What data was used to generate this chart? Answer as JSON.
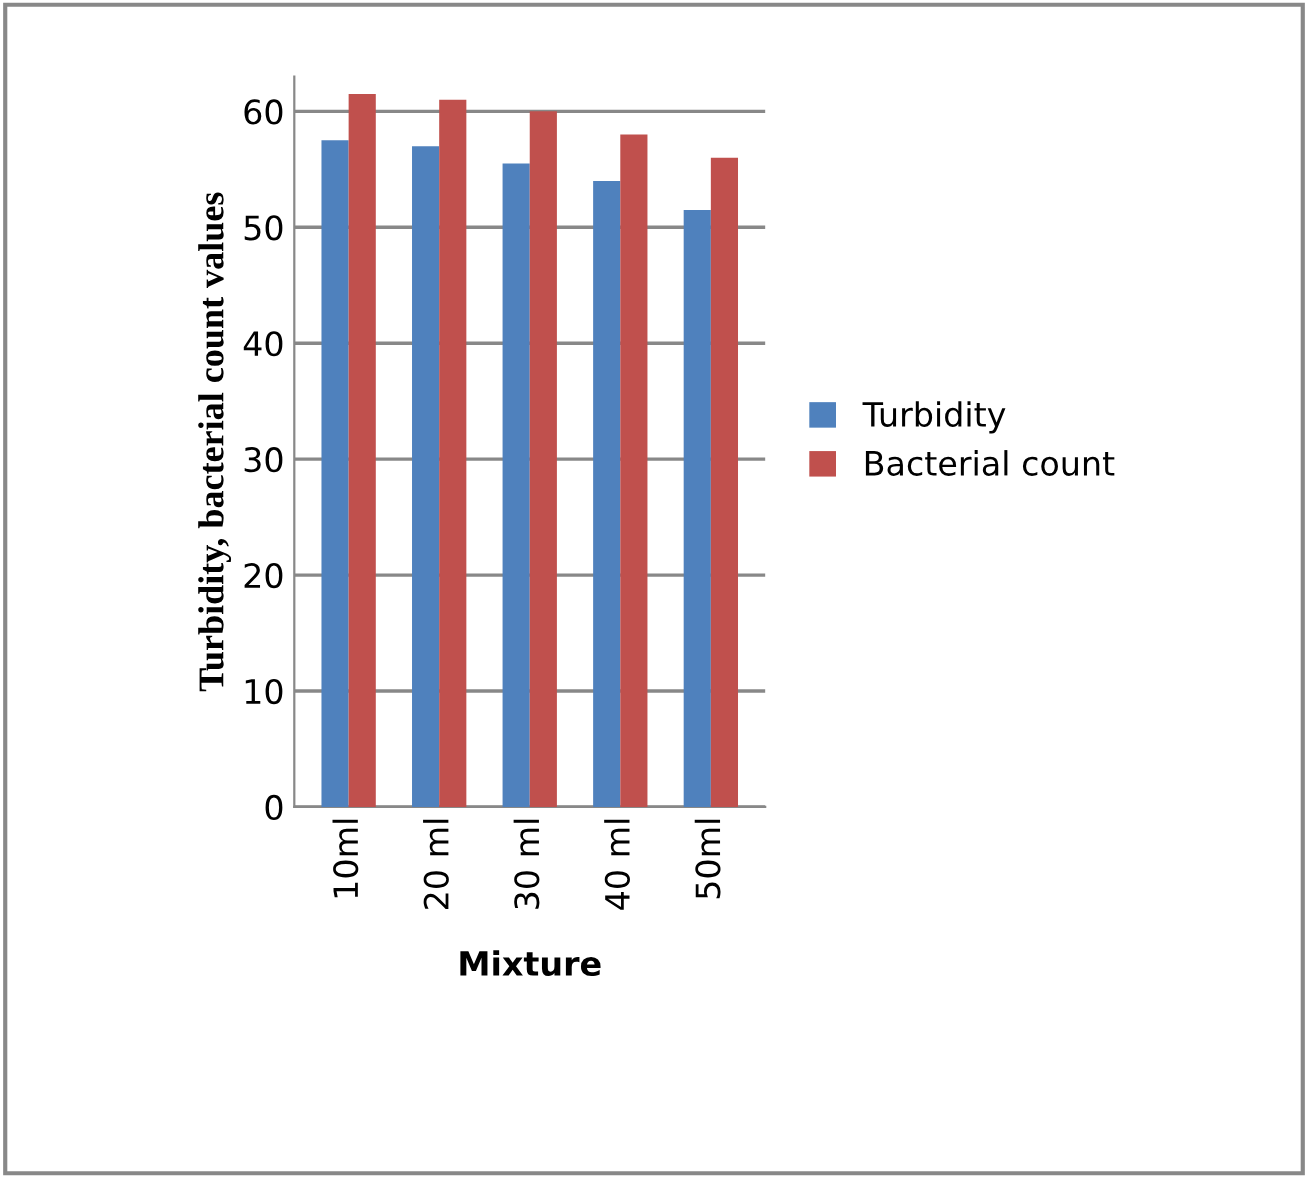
{
  "chart_data": {
    "type": "bar",
    "xlabel": "Mixture",
    "ylabel": "Turbidity, bacterial count values",
    "categories": [
      "10ml",
      "20 ml",
      "30 ml",
      "40 ml",
      "50ml"
    ],
    "series": [
      {
        "name": "Turbidity",
        "color": "#4f81bd",
        "values": [
          57.5,
          57,
          55.5,
          54,
          51.5
        ]
      },
      {
        "name": "Bacterial count",
        "color": "#c0504d",
        "values": [
          61.5,
          61,
          60,
          58,
          56
        ]
      }
    ],
    "ylim": [
      0,
      63
    ],
    "yticks": [
      0,
      10,
      20,
      30,
      40,
      50,
      60
    ],
    "grid": "y",
    "legend": "right"
  }
}
